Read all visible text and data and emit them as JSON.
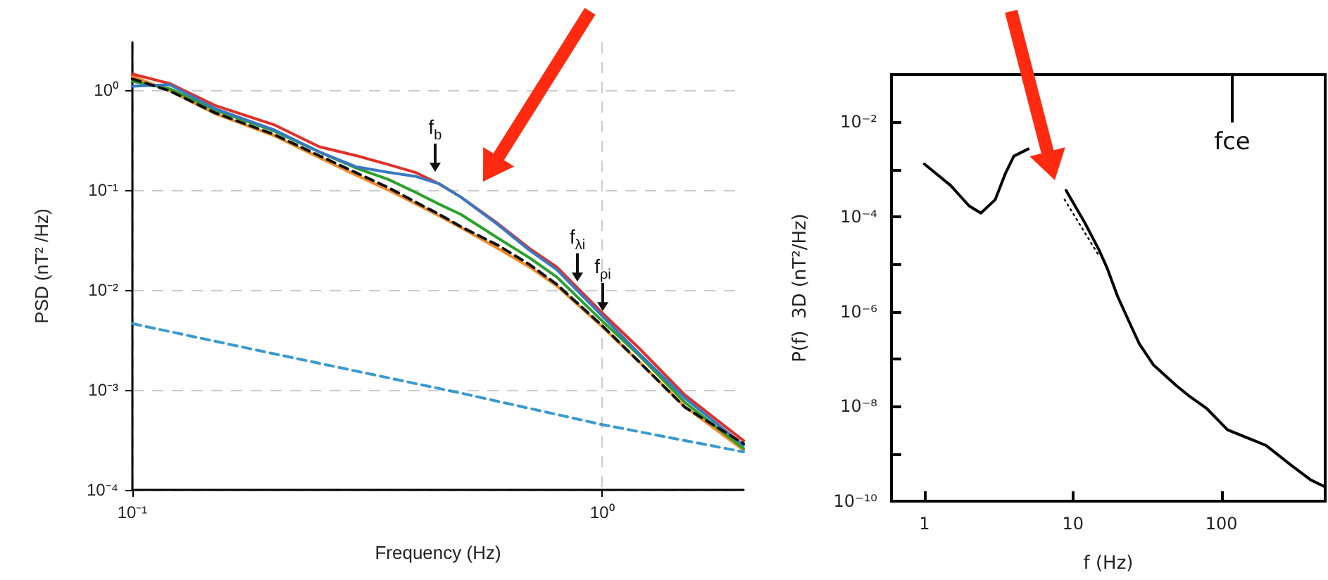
{
  "chart_data": [
    {
      "type": "line",
      "xlabel": "Frequency (Hz)",
      "ylabel": "PSD (nT² /Hz)",
      "log": "xy",
      "grid": true,
      "marker": "none",
      "xlim": [
        0.1,
        2.0
      ],
      "xticks": [
        {
          "value": 0.1,
          "label": "10⁻¹"
        },
        {
          "value": 1,
          "label": "10⁰"
        }
      ],
      "ylim": [
        0.0001,
        3
      ],
      "yticks": [
        {
          "value": 0.0001,
          "label": "10⁻⁴"
        },
        {
          "value": 0.001,
          "label": "10⁻³"
        },
        {
          "value": 0.01,
          "label": "10⁻²"
        },
        {
          "value": 0.1,
          "label": "10⁻¹"
        },
        {
          "value": 1,
          "label": "10⁰"
        }
      ],
      "x": [
        0.1,
        0.12,
        0.15,
        0.2,
        0.25,
        0.3,
        0.35,
        0.4,
        0.45,
        0.5,
        0.6,
        0.7,
        0.8,
        1.0,
        1.2,
        1.5,
        2.0
      ],
      "series": [
        {
          "color": "#f08a24",
          "values": [
            1.37,
            0.98,
            0.58,
            0.35,
            0.21,
            0.14,
            0.1,
            0.073,
            0.055,
            0.042,
            0.026,
            0.017,
            0.011,
            0.0043,
            0.0019,
            0.00068,
            0.00025
          ]
        },
        {
          "color": "#2ca02c",
          "values": [
            1.22,
            1.03,
            0.63,
            0.39,
            0.24,
            0.165,
            0.128,
            0.095,
            0.072,
            0.057,
            0.033,
            0.021,
            0.0135,
            0.0049,
            0.0022,
            0.00075,
            0.00026
          ]
        },
        {
          "color": "#e0302a",
          "values": [
            1.44,
            1.16,
            0.7,
            0.45,
            0.27,
            0.22,
            0.18,
            0.15,
            0.115,
            0.085,
            0.046,
            0.026,
            0.017,
            0.0059,
            0.0026,
            0.00089,
            0.00031
          ]
        },
        {
          "color": "#3a78c0",
          "values": [
            1.09,
            1.13,
            0.65,
            0.4,
            0.24,
            0.17,
            0.15,
            0.137,
            0.115,
            0.085,
            0.045,
            0.025,
            0.016,
            0.0055,
            0.0023,
            0.00083,
            0.00028
          ]
        },
        {
          "color": "#111111",
          "line_style": "dashed",
          "values": [
            1.29,
            0.98,
            0.59,
            0.36,
            0.22,
            0.148,
            0.106,
            0.076,
            0.057,
            0.043,
            0.028,
            0.018,
            0.0114,
            0.0044,
            0.0019,
            0.00067,
            0.00029
          ]
        },
        {
          "color": "#3a9ad0",
          "line_style": "dashed",
          "x": [
            0.1,
            0.2,
            0.5,
            1.0,
            2.0
          ],
          "values": [
            0.0046,
            0.0023,
            0.00093,
            0.00045,
            0.00024
          ]
        }
      ],
      "annotations": [
        "f$_{b}$",
        "f$_{λi}$",
        "f$_{ρi}$"
      ]
    },
    {
      "type": "line",
      "xlabel": "f (Hz)",
      "ylabel": "P(f)  3D (nT²/Hz)",
      "log": "xy",
      "grid": false,
      "marker": "none",
      "xlim": [
        0.6,
        500
      ],
      "xticks": [
        1,
        10,
        100
      ],
      "ylim": [
        1e-10,
        0.1
      ],
      "yticks": [
        {
          "value": 1e-10,
          "label": "10⁻¹⁰"
        },
        {
          "value": 1e-09,
          "label": null
        },
        {
          "value": 1e-08,
          "label": "10⁻⁸"
        },
        {
          "value": 1e-07,
          "label": null
        },
        {
          "value": 1e-06,
          "label": "10⁻⁶"
        },
        {
          "value": 1e-05,
          "label": null
        },
        {
          "value": 0.0001,
          "label": "10⁻⁴"
        },
        {
          "value": 0.001,
          "label": null
        },
        {
          "value": 0.01,
          "label": "10⁻²"
        }
      ],
      "series": [
        {
          "color": "#000000",
          "x": [
            1,
            1.5,
            2,
            2.4,
            3,
            3.5,
            4,
            5,
            8.7,
            9,
            12,
            15,
            17,
            20,
            25,
            28,
            35,
            50,
            60,
            80,
            110,
            200,
            300,
            400,
            500
          ],
          "values": [
            0.0013,
            0.00046,
            0.00017,
            0.00012,
            0.00023,
            0.0008,
            0.0019,
            0.0027,
            null,
            0.00036,
            7.6e-05,
            2e-05,
            8.3e-06,
            2.1e-06,
            4.5e-07,
            2.1e-07,
            7.4e-08,
            2.7e-08,
            1.7e-08,
            8.9e-09,
            3.2e-09,
            1.5e-09,
            5.5e-10,
            2.8e-10,
            2e-10
          ]
        },
        {
          "color": "#000000",
          "line_style": "dotted",
          "x": [
            8.8,
            15.2
          ],
          "values": [
            0.00023,
            1.4e-05
          ]
        }
      ],
      "annotations": [
        "fce"
      ]
    }
  ]
}
